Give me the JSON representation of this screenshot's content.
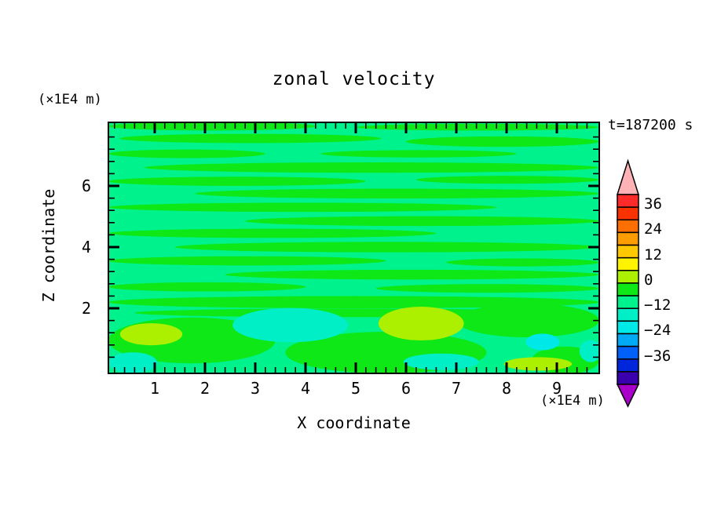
{
  "title": "zonal velocity",
  "time_label": "t=187200 s",
  "x_axis": {
    "label": "X coordinate",
    "unit": "(×1E4 m)",
    "major_ticks": [
      "1",
      "2",
      "3",
      "4",
      "5",
      "6",
      "7",
      "8",
      "9"
    ]
  },
  "y_axis": {
    "label": "Z coordinate",
    "unit": "(×1E4 m)",
    "major_ticks": [
      "2",
      "4",
      "6"
    ]
  },
  "colorbar": {
    "labels": [
      "36",
      "24",
      "12",
      "0",
      "−12",
      "−24",
      "−36"
    ],
    "colors": [
      "#FF2A2A",
      "#FA3200",
      "#FF6F00",
      "#FF9C00",
      "#FFC800",
      "#FFF400",
      "#ACF000",
      "#0EE816",
      "#00F28C",
      "#00EFC6",
      "#00E9E9",
      "#00AAF5",
      "#0061FA",
      "#0026DC",
      "#3A00AE"
    ],
    "over_color": "#FFB2B6",
    "under_color": "#A800C8"
  },
  "chart_data": {
    "type": "filled_contour",
    "title": "zonal velocity",
    "xlabel": "X coordinate",
    "ylabel": "Z coordinate",
    "x_unit": "(×1E4 m)",
    "y_unit": "(×1E4 m)",
    "time_annotation": "t=187200 s",
    "xlim": [
      0.08,
      9.84
    ],
    "ylim": [
      0,
      8.15
    ],
    "x_major_ticks": [
      1,
      2,
      3,
      4,
      5,
      6,
      7,
      8,
      9
    ],
    "x_minor_step": 0.2,
    "y_major_ticks": [
      2,
      4,
      6
    ],
    "y_minor_step": 0.4,
    "contour_interval": 6,
    "labeled_levels": [
      36,
      24,
      12,
      0,
      -12,
      -24,
      -36
    ],
    "legend_position": "right",
    "grid": false,
    "field_colors": {
      "mint": "#00F28C",
      "green": "#0EE816",
      "aqua": "#00EFC6",
      "cyan": "#00E9E9",
      "chartreuse": "#ACF000"
    },
    "background_band": "mint",
    "stripes_band": "green",
    "stripes": [
      [
        0.08,
        4.2,
        7.95,
        0.14
      ],
      [
        5.0,
        9.84,
        7.92,
        0.11
      ],
      [
        0.3,
        5.5,
        7.55,
        0.15
      ],
      [
        6.0,
        9.84,
        7.45,
        0.17
      ],
      [
        0.08,
        3.2,
        7.05,
        0.14
      ],
      [
        4.3,
        8.2,
        7.05,
        0.12
      ],
      [
        0.8,
        9.84,
        6.6,
        0.17
      ],
      [
        0.08,
        5.2,
        6.15,
        0.15
      ],
      [
        6.2,
        9.84,
        6.2,
        0.13
      ],
      [
        1.8,
        9.84,
        5.75,
        0.16
      ],
      [
        0.08,
        7.8,
        5.3,
        0.15
      ],
      [
        2.8,
        9.84,
        4.85,
        0.16
      ],
      [
        0.08,
        6.6,
        4.45,
        0.15
      ],
      [
        1.4,
        9.84,
        4.0,
        0.17
      ],
      [
        0.08,
        5.6,
        3.55,
        0.15
      ],
      [
        6.8,
        9.84,
        3.5,
        0.13
      ],
      [
        2.4,
        9.84,
        3.1,
        0.16
      ],
      [
        0.08,
        4.0,
        2.7,
        0.15
      ],
      [
        5.4,
        9.84,
        2.65,
        0.14
      ],
      [
        0.08,
        9.84,
        2.2,
        0.2
      ],
      [
        0.6,
        9.0,
        1.85,
        0.14
      ]
    ],
    "green_blobs": [
      [
        0.08,
        3.4,
        0.95,
        0.75
      ],
      [
        3.6,
        7.6,
        0.55,
        0.68
      ],
      [
        7.0,
        9.84,
        1.6,
        0.55
      ],
      [
        8.5,
        9.84,
        0.3,
        0.45
      ]
    ],
    "patches": [
      {
        "band": "aqua",
        "ellipse": [
          0.08,
          1.05,
          0.22,
          0.34
        ]
      },
      {
        "band": "chartreuse",
        "ellipse": [
          0.31,
          1.55,
          1.15,
          0.36
        ]
      },
      {
        "band": "aqua",
        "ellipse": [
          2.55,
          4.85,
          1.45,
          0.56
        ]
      },
      {
        "band": "chartreuse",
        "ellipse": [
          5.45,
          7.15,
          1.5,
          0.55
        ]
      },
      {
        "band": "cyan",
        "ellipse": [
          8.38,
          9.05,
          0.9,
          0.27
        ]
      },
      {
        "band": "aqua",
        "ellipse": [
          5.95,
          7.45,
          0.25,
          0.27
        ]
      },
      {
        "band": "chartreuse",
        "ellipse": [
          7.95,
          9.3,
          0.18,
          0.22
        ]
      },
      {
        "band": "aqua",
        "ellipse": [
          9.45,
          9.9,
          0.6,
          0.36
        ]
      }
    ]
  }
}
